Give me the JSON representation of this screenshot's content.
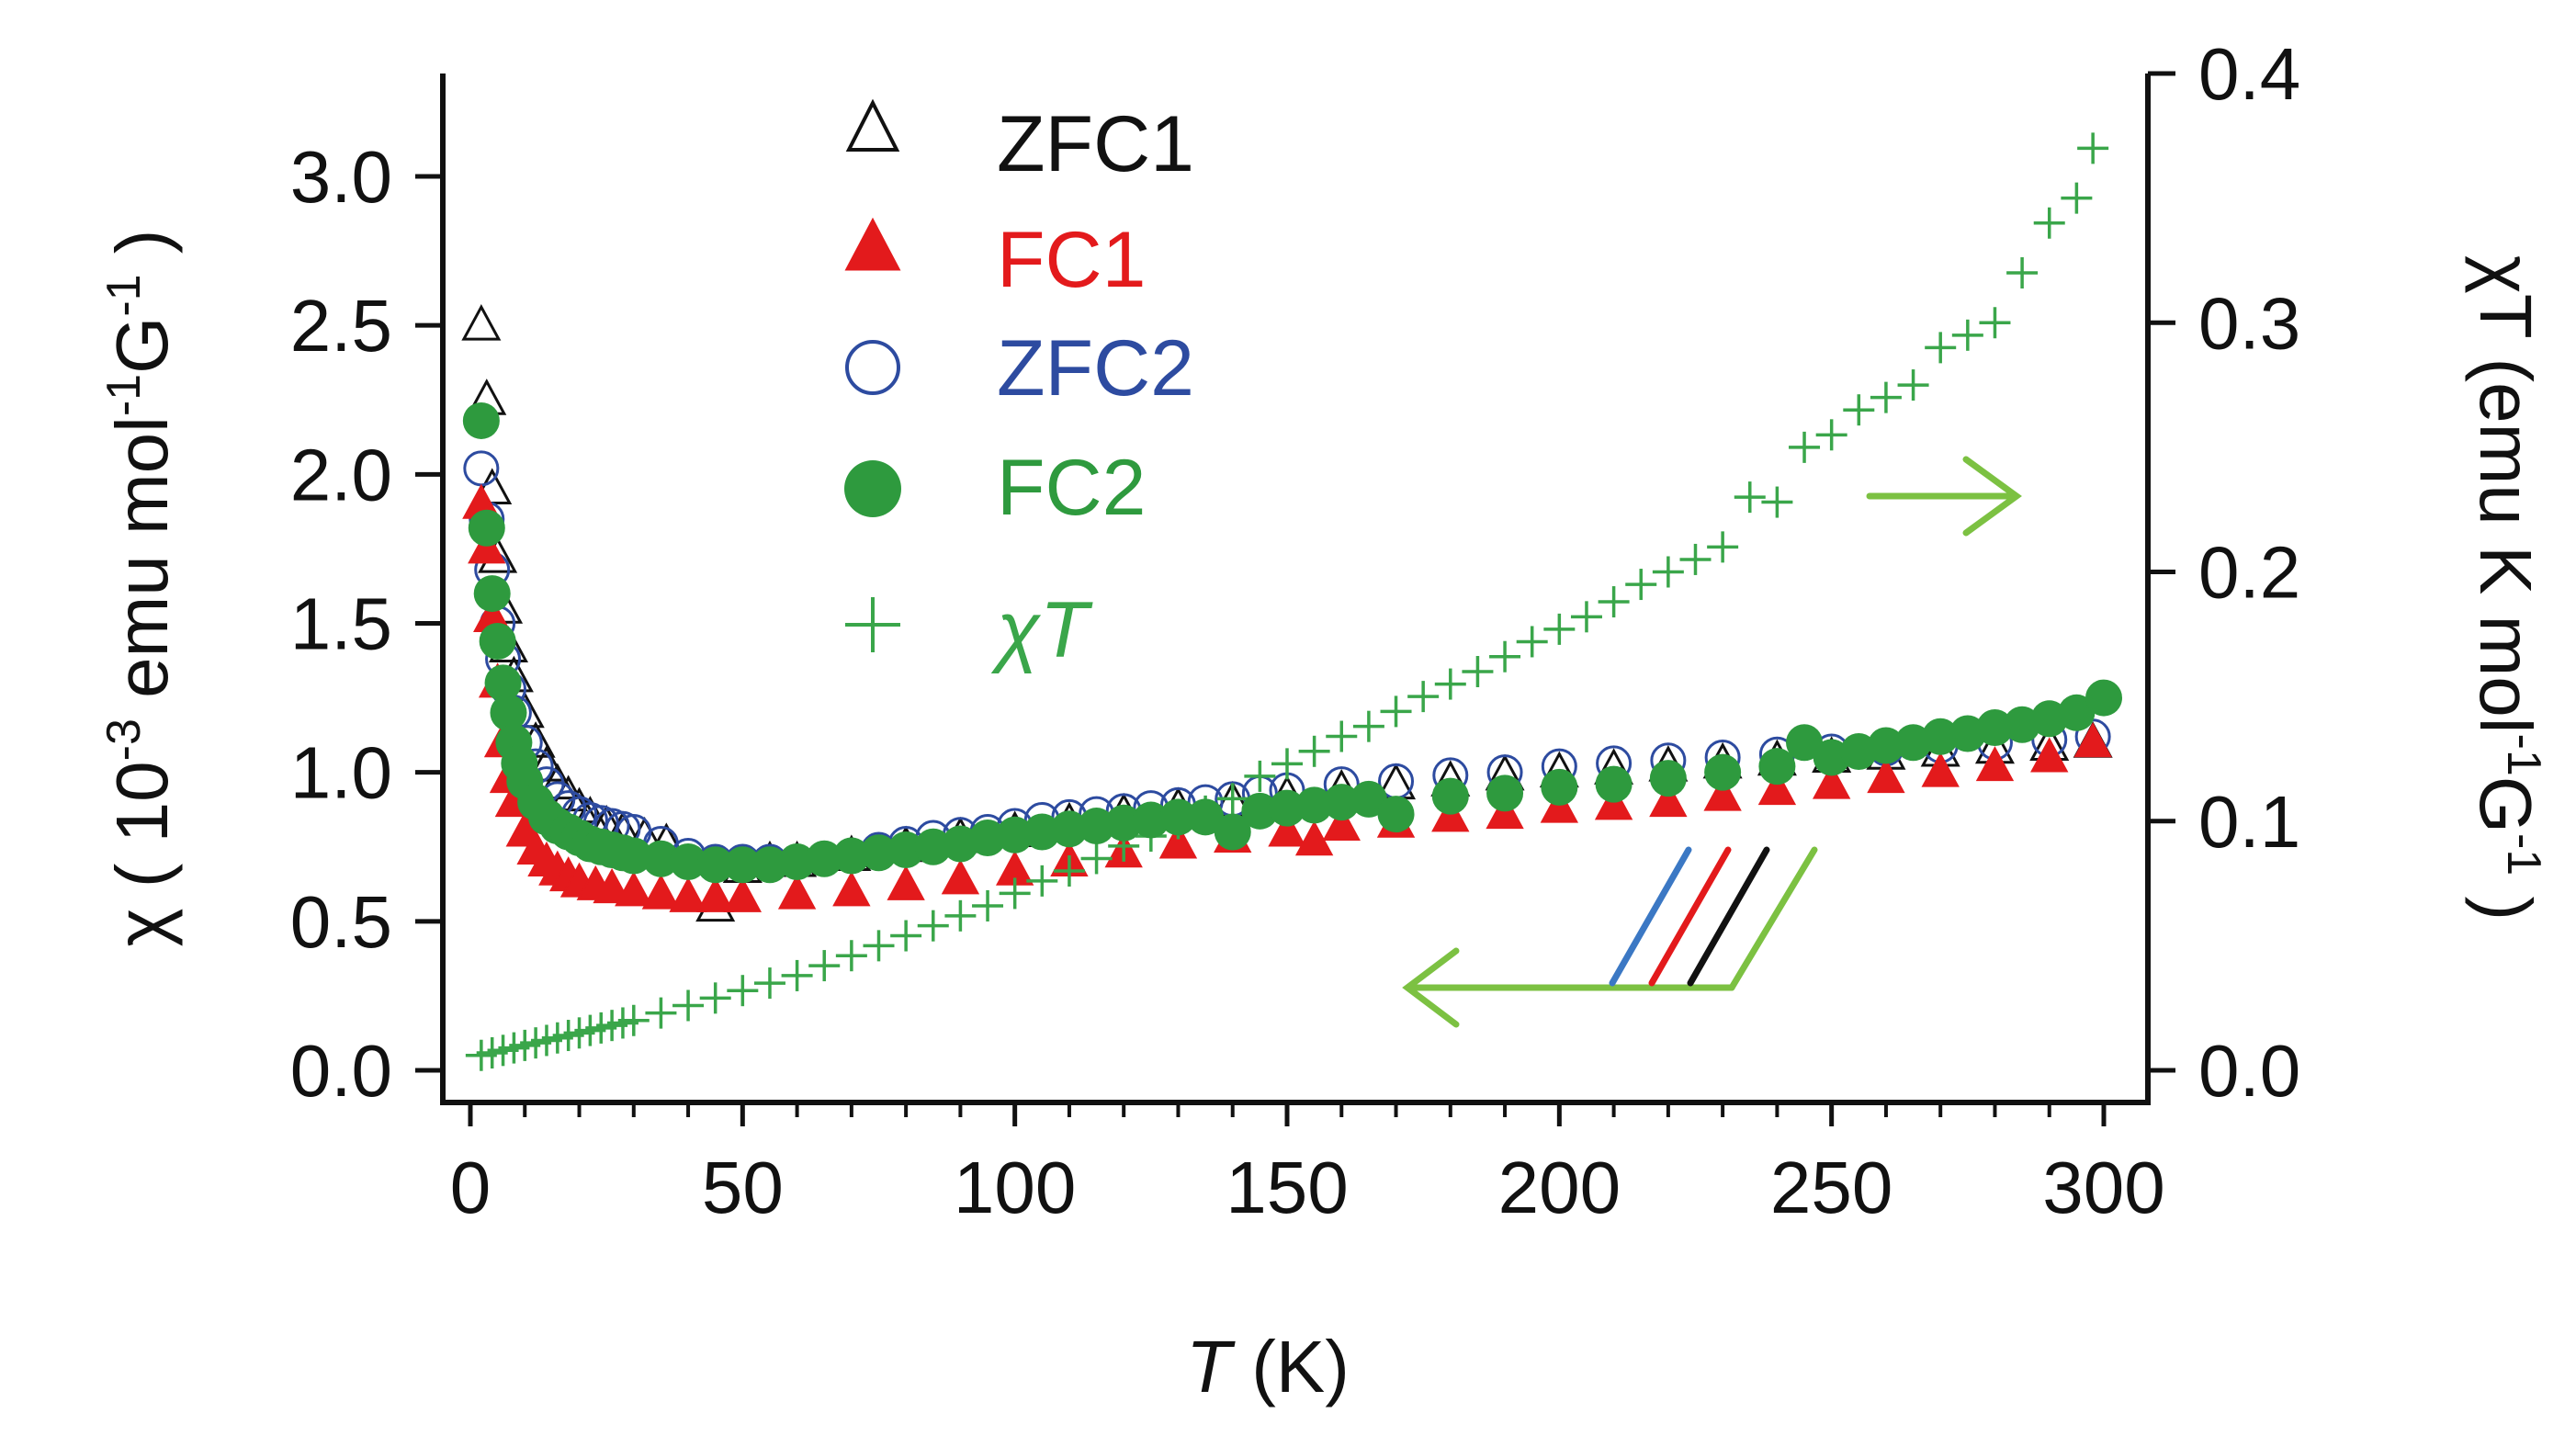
{
  "chart_data": {
    "type": "scatter",
    "title": "",
    "xlabel": {
      "italic": "T",
      "rest": " (K)"
    },
    "ylabel": {
      "prefix": "χ ( 10",
      "exp1": "-3",
      "mid1": " emu mol",
      "exp2": "-1",
      "mid2": "G",
      "exp3": "-1",
      "suffix": " )"
    },
    "y2label": {
      "prefix": "χT (emu K mol",
      "exp1": "-1",
      "mid1": "G",
      "exp2": "-1",
      "suffix": " )"
    },
    "xlim": [
      -5,
      305
    ],
    "ylim": [
      0.0,
      3.3
    ],
    "y2lim": [
      0.0,
      0.4
    ],
    "xticks": [
      0,
      50,
      100,
      150,
      200,
      250,
      300
    ],
    "xtick_labels": [
      "0",
      "50",
      "100",
      "150",
      "200",
      "250",
      "300"
    ],
    "yticks": [
      0.0,
      0.5,
      1.0,
      1.5,
      2.0,
      2.5,
      3.0
    ],
    "ytick_labels": [
      "0.0",
      "0.5",
      "1.0",
      "1.5",
      "2.0",
      "2.5",
      "3.0"
    ],
    "y2ticks": [
      0.0,
      0.1,
      0.2,
      0.3,
      0.4
    ],
    "y2tick_labels": [
      "0.0",
      "0.1",
      "0.2",
      "0.3",
      "0.4"
    ],
    "legend_position": "top-left",
    "series": [
      {
        "name": "ZFC1",
        "marker": "open-triangle",
        "color": "#111111",
        "axis": "left",
        "x": [
          2,
          3,
          4,
          5,
          6,
          7,
          8,
          10,
          12,
          14,
          16,
          18,
          20,
          22,
          25,
          28,
          32,
          36,
          45,
          50,
          55,
          60,
          70,
          80,
          90,
          100,
          110,
          120,
          130,
          140,
          150,
          160,
          170,
          180,
          190,
          200,
          210,
          220,
          230,
          240,
          250,
          260,
          270,
          280,
          290,
          298
        ],
        "y": [
          2.5,
          2.25,
          1.95,
          1.72,
          1.55,
          1.42,
          1.32,
          1.2,
          1.1,
          1.02,
          0.96,
          0.92,
          0.88,
          0.85,
          0.82,
          0.8,
          0.78,
          0.76,
          0.55,
          0.68,
          0.7,
          0.7,
          0.72,
          0.75,
          0.78,
          0.8,
          0.83,
          0.86,
          0.88,
          0.9,
          0.92,
          0.94,
          0.96,
          0.97,
          0.99,
          1.0,
          1.01,
          1.02,
          1.03,
          1.04,
          1.05,
          1.06,
          1.07,
          1.08,
          1.09,
          1.1
        ]
      },
      {
        "name": "FC1",
        "marker": "filled-triangle",
        "color": "#e31a1c",
        "axis": "left",
        "x": [
          2,
          3,
          4,
          5,
          6,
          7,
          8,
          10,
          12,
          14,
          16,
          18,
          20,
          23,
          26,
          30,
          35,
          40,
          45,
          50,
          60,
          70,
          80,
          90,
          100,
          110,
          120,
          130,
          140,
          150,
          155,
          160,
          170,
          180,
          190,
          200,
          210,
          220,
          230,
          240,
          250,
          260,
          270,
          280,
          290,
          298
        ],
        "y": [
          1.9,
          1.75,
          1.52,
          1.3,
          1.1,
          0.98,
          0.9,
          0.8,
          0.74,
          0.7,
          0.67,
          0.65,
          0.63,
          0.62,
          0.61,
          0.6,
          0.59,
          0.58,
          0.58,
          0.58,
          0.59,
          0.6,
          0.62,
          0.64,
          0.67,
          0.7,
          0.73,
          0.76,
          0.78,
          0.8,
          0.77,
          0.82,
          0.83,
          0.85,
          0.86,
          0.88,
          0.89,
          0.9,
          0.92,
          0.94,
          0.96,
          0.98,
          1.0,
          1.02,
          1.05,
          1.1
        ]
      },
      {
        "name": "ZFC2",
        "marker": "open-circle",
        "color": "#2d4ba0",
        "axis": "left",
        "x": [
          2,
          3,
          4,
          5,
          6,
          7,
          8,
          10,
          12,
          14,
          16,
          18,
          20,
          22,
          24,
          26,
          28,
          30,
          35,
          40,
          45,
          50,
          55,
          60,
          65,
          70,
          75,
          80,
          85,
          90,
          95,
          100,
          105,
          110,
          115,
          120,
          125,
          130,
          135,
          140,
          145,
          150,
          160,
          170,
          180,
          190,
          200,
          210,
          220,
          230,
          240,
          250,
          260,
          270,
          280,
          290,
          298
        ],
        "y": [
          2.02,
          1.85,
          1.68,
          1.5,
          1.38,
          1.28,
          1.2,
          1.1,
          1.02,
          0.96,
          0.91,
          0.88,
          0.86,
          0.84,
          0.83,
          0.82,
          0.81,
          0.8,
          0.76,
          0.72,
          0.7,
          0.7,
          0.7,
          0.7,
          0.71,
          0.72,
          0.74,
          0.76,
          0.78,
          0.79,
          0.8,
          0.82,
          0.84,
          0.85,
          0.86,
          0.87,
          0.88,
          0.89,
          0.9,
          0.91,
          0.93,
          0.94,
          0.96,
          0.97,
          0.99,
          1.0,
          1.02,
          1.03,
          1.04,
          1.05,
          1.06,
          1.07,
          1.08,
          1.09,
          1.1,
          1.11,
          1.12
        ]
      },
      {
        "name": "FC2",
        "marker": "filled-circle",
        "color": "#2e9a3e",
        "axis": "left",
        "x": [
          2,
          3,
          4,
          5,
          6,
          7,
          8,
          9,
          10,
          12,
          14,
          16,
          18,
          20,
          22,
          24,
          26,
          28,
          30,
          35,
          40,
          45,
          50,
          55,
          60,
          65,
          70,
          75,
          80,
          85,
          90,
          95,
          100,
          105,
          110,
          115,
          120,
          125,
          130,
          135,
          140,
          145,
          150,
          155,
          160,
          165,
          170,
          180,
          190,
          200,
          210,
          220,
          230,
          240,
          245,
          250,
          255,
          260,
          265,
          270,
          275,
          280,
          285,
          290,
          295,
          300
        ],
        "y": [
          2.18,
          1.82,
          1.6,
          1.44,
          1.3,
          1.2,
          1.1,
          1.03,
          0.97,
          0.9,
          0.85,
          0.82,
          0.8,
          0.78,
          0.76,
          0.75,
          0.74,
          0.73,
          0.72,
          0.71,
          0.7,
          0.69,
          0.69,
          0.69,
          0.7,
          0.71,
          0.72,
          0.73,
          0.74,
          0.75,
          0.76,
          0.78,
          0.79,
          0.8,
          0.81,
          0.82,
          0.83,
          0.84,
          0.85,
          0.85,
          0.8,
          0.87,
          0.88,
          0.89,
          0.9,
          0.91,
          0.86,
          0.92,
          0.93,
          0.95,
          0.96,
          0.98,
          1.0,
          1.02,
          1.1,
          1.05,
          1.07,
          1.09,
          1.1,
          1.12,
          1.13,
          1.15,
          1.16,
          1.18,
          1.2,
          1.25
        ]
      },
      {
        "name": "χT",
        "marker": "plus",
        "color": "#3aa64a",
        "axis": "right",
        "x": [
          2,
          4,
          6,
          8,
          10,
          12,
          14,
          16,
          18,
          20,
          22,
          24,
          26,
          28,
          30,
          35,
          40,
          45,
          50,
          55,
          60,
          65,
          70,
          75,
          80,
          85,
          90,
          95,
          100,
          105,
          110,
          115,
          120,
          125,
          130,
          135,
          140,
          145,
          150,
          155,
          160,
          165,
          170,
          175,
          180,
          185,
          190,
          195,
          200,
          205,
          210,
          215,
          220,
          225,
          230,
          235,
          240,
          245,
          250,
          255,
          260,
          265,
          270,
          275,
          280,
          285,
          290,
          295,
          298
        ],
        "y": [
          0.006,
          0.007,
          0.008,
          0.009,
          0.01,
          0.011,
          0.012,
          0.013,
          0.014,
          0.015,
          0.016,
          0.017,
          0.018,
          0.019,
          0.02,
          0.023,
          0.026,
          0.029,
          0.032,
          0.035,
          0.038,
          0.042,
          0.046,
          0.05,
          0.054,
          0.058,
          0.062,
          0.066,
          0.071,
          0.076,
          0.08,
          0.085,
          0.09,
          0.094,
          0.099,
          0.104,
          0.109,
          0.118,
          0.123,
          0.128,
          0.134,
          0.138,
          0.144,
          0.15,
          0.155,
          0.16,
          0.166,
          0.172,
          0.177,
          0.182,
          0.188,
          0.195,
          0.2,
          0.205,
          0.21,
          0.23,
          0.228,
          0.25,
          0.255,
          0.265,
          0.27,
          0.275,
          0.29,
          0.295,
          0.3,
          0.32,
          0.34,
          0.35,
          0.37
        ]
      }
    ],
    "legend": [
      {
        "label": "ZFC1",
        "marker": "open-triangle",
        "color": "#111111"
      },
      {
        "label": "FC1",
        "marker": "filled-triangle",
        "color": "#e31a1c"
      },
      {
        "label": "ZFC2",
        "marker": "open-circle",
        "color": "#2d4ba0"
      },
      {
        "label": "FC2",
        "marker": "filled-circle",
        "color": "#2e9a3e"
      },
      {
        "label_chi": "χ",
        "label_T": "T",
        "marker": "plus",
        "color": "#3aa64a"
      }
    ],
    "annotations": [
      {
        "kind": "arrow-right",
        "meaning": "χT series uses right axis",
        "color": "#7cc142"
      },
      {
        "kind": "arrow-left",
        "meaning": "χ series use left axis",
        "color": "#7cc142",
        "bracket_colors": [
          "#3b78c4",
          "#e31a1c",
          "#111111",
          "#7cc142"
        ]
      }
    ]
  }
}
